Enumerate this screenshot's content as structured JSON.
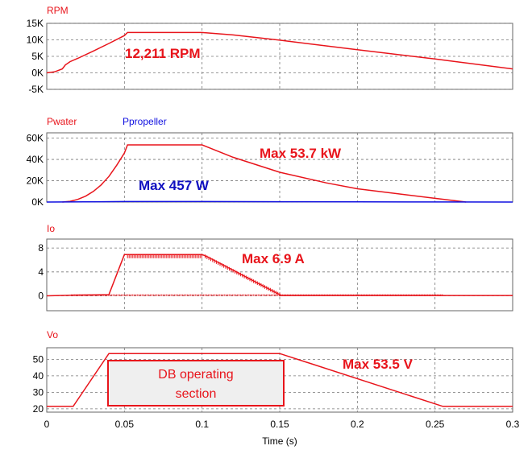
{
  "chart_data": [
    {
      "type": "line",
      "series": [
        {
          "name": "RPM",
          "color": "#e8141b",
          "x": [
            0,
            0.005,
            0.01,
            0.012,
            0.015,
            0.02,
            0.03,
            0.04,
            0.05,
            0.052,
            0.06,
            0.08,
            0.1,
            0.12,
            0.15,
            0.2,
            0.25,
            0.3
          ],
          "values": [
            0,
            300,
            1200,
            2400,
            3400,
            4400,
            6600,
            8900,
            11300,
            12211,
            12211,
            12211,
            12211,
            11500,
            9900,
            7000,
            4200,
            1200
          ]
        }
      ],
      "yticks": [
        "15K",
        "10K",
        "5K",
        "0K",
        "-5K"
      ],
      "ylim": [
        -5000,
        15000
      ],
      "annotations": [
        {
          "text": "12,211 RPM",
          "color": "#e8141b"
        }
      ]
    },
    {
      "type": "line",
      "series": [
        {
          "name": "Pwater",
          "color": "#e8141b",
          "x": [
            0.01,
            0.015,
            0.02,
            0.025,
            0.03,
            0.035,
            0.04,
            0.045,
            0.05,
            0.052,
            0.07,
            0.1,
            0.12,
            0.15,
            0.18,
            0.2,
            0.25,
            0.27
          ],
          "values": [
            0,
            700,
            2500,
            5500,
            10000,
            16000,
            24000,
            34500,
            46000,
            53700,
            53700,
            53700,
            42000,
            28000,
            18000,
            12500,
            3500,
            0
          ]
        },
        {
          "name": "Ppropeller",
          "color": "#1010e0",
          "x": [
            0,
            0.05,
            0.1,
            0.15,
            0.2,
            0.25,
            0.3
          ],
          "values": [
            0,
            457,
            457,
            300,
            150,
            50,
            0
          ]
        }
      ],
      "yticks": [
        "60K",
        "40K",
        "20K",
        "0K"
      ],
      "ylim": [
        0,
        65000
      ],
      "annotations": [
        {
          "text": "Max 53.7 kW",
          "color": "#e8141b"
        },
        {
          "text": "Max 457 W",
          "color": "#1010c0"
        }
      ]
    },
    {
      "type": "line",
      "series": [
        {
          "name": "Io",
          "color": "#e8141b",
          "x": [
            0,
            0.016,
            0.04,
            0.05,
            0.1,
            0.103,
            0.15,
            0.151,
            0.3
          ],
          "values": [
            0,
            0.1,
            0.2,
            6.9,
            6.9,
            6.6,
            0.2,
            0.05,
            0.05
          ]
        }
      ],
      "yticks": [
        "8",
        "4",
        "0"
      ],
      "ylim": [
        -2.5,
        9.5
      ],
      "annotations": [
        {
          "text": "Max 6.9 A",
          "color": "#e8141b"
        }
      ]
    },
    {
      "type": "line",
      "series": [
        {
          "name": "Vo",
          "color": "#e8141b",
          "x": [
            0,
            0.017,
            0.04,
            0.15,
            0.255,
            0.3
          ],
          "values": [
            21.5,
            21.5,
            53.5,
            53.5,
            21.5,
            21.5
          ]
        }
      ],
      "yticks": [
        "50",
        "40",
        "30",
        "20"
      ],
      "ylim": [
        18,
        57
      ],
      "annotations": [
        {
          "text": "Max 53.5 V",
          "color": "#e8141b"
        },
        {
          "text_lines": [
            "DB operating",
            "section"
          ],
          "color": "#e8141b"
        }
      ]
    }
  ],
  "x_axis": {
    "label": "Time (s)",
    "ticks": [
      "0",
      "0.05",
      "0.1",
      "0.15",
      "0.2",
      "0.25",
      "0.3"
    ],
    "values": [
      0,
      0.05,
      0.1,
      0.15,
      0.2,
      0.25,
      0.3
    ],
    "range": [
      0,
      0.3
    ]
  }
}
